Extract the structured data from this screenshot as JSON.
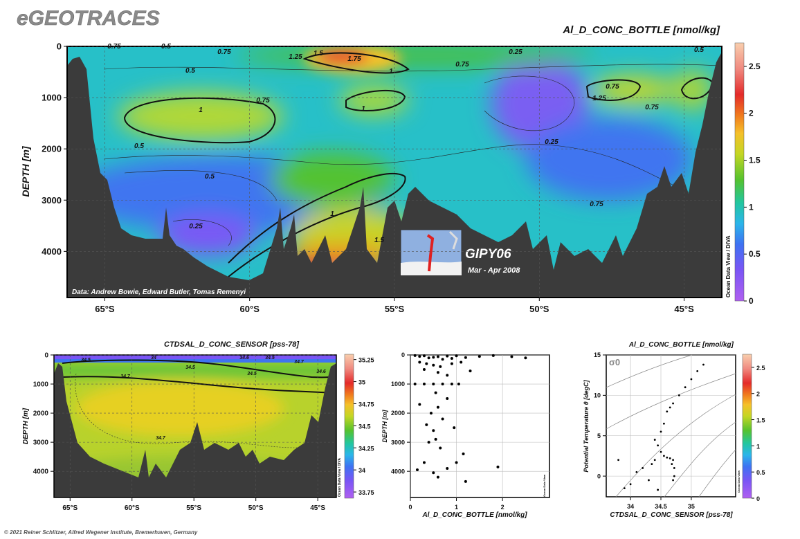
{
  "header": {
    "title": "eGEOTRACES",
    "credit": "© 2021 Reiner Schlitzer, Alfred Wegener Institute, Bremerhaven, Germany"
  },
  "chart_data": [
    {
      "type": "section",
      "title": "Al_D_CONC_BOTTLE [nmol/kg]",
      "ylabel": "DEPTH [m]",
      "note": "Data: Andrew Bowie, Edward Butler, Tomas Remenyi",
      "cruise": "GIPY06",
      "period": "Mar - Apr 2008",
      "side_label": "Ocean Data View / DIVA",
      "xlim": [
        -66.3,
        -43.7
      ],
      "xticks": [
        {
          "value": -65,
          "label": "65°S"
        },
        {
          "value": -60,
          "label": "60°S"
        },
        {
          "value": -55,
          "label": "55°S"
        },
        {
          "value": -50,
          "label": "50°S"
        },
        {
          "value": -45,
          "label": "45°S"
        }
      ],
      "ylim": [
        4900,
        0
      ],
      "yticks": [
        0,
        1000,
        2000,
        3000,
        4000
      ],
      "clim": [
        0,
        2.75
      ],
      "cticks": [
        0,
        0.5,
        1,
        1.5,
        2,
        2.5
      ],
      "contour_labels": [
        0.75,
        0.5,
        0.5,
        0.75,
        1.25,
        1.5,
        1.75,
        0.75,
        1,
        0.75,
        0.25,
        1,
        1,
        1.25,
        0.75,
        0.75,
        0.25,
        0.5,
        0.5,
        0.75,
        0.25,
        1,
        1.5,
        0.5
      ]
    },
    {
      "type": "section",
      "title": "CTDSAL_D_CONC_SENSOR [pss-78]",
      "ylabel": "DEPTH [m]",
      "side_label": "Ocean Data View / DIVA",
      "xlim": [
        -66.3,
        -43.5
      ],
      "xticks": [
        {
          "value": -65,
          "label": "65°S"
        },
        {
          "value": -60,
          "label": "60°S"
        },
        {
          "value": -55,
          "label": "55°S"
        },
        {
          "value": -50,
          "label": "50°S"
        },
        {
          "value": -45,
          "label": "45°S"
        }
      ],
      "ylim": [
        4900,
        0
      ],
      "yticks": [
        0,
        1000,
        2000,
        3000,
        4000
      ],
      "clim": [
        33.68,
        35.31
      ],
      "cticks": [
        33.75,
        34,
        34.25,
        34.5,
        34.75,
        35,
        35.25
      ],
      "contour_labels": [
        34.5,
        34,
        34.7,
        34.5,
        34.6,
        34.5,
        34.7,
        34.6,
        34.5,
        34.7
      ]
    },
    {
      "type": "scatter",
      "xlabel": "Al_D_CONC_BOTTLE [nmol/kg]",
      "ylabel": "DEPTH [m]",
      "side_label": "Ocean Data View",
      "xlim": [
        0,
        3.02
      ],
      "xticks": [
        0,
        1,
        2
      ],
      "ylim": [
        4900,
        0
      ],
      "yticks": [
        0,
        1000,
        2000,
        3000,
        4000
      ],
      "color": "#000000",
      "x": [
        0.1,
        0.2,
        0.3,
        0.4,
        0.5,
        0.6,
        0.7,
        0.8,
        0.9,
        1.0,
        1.2,
        1.5,
        1.8,
        2.2,
        2.5,
        0.2,
        0.35,
        0.5,
        0.65,
        0.9,
        1.1,
        0.3,
        0.6,
        0.8,
        1.3,
        0.1,
        0.3,
        0.5,
        0.7,
        0.9,
        1.05,
        0.55,
        0.8,
        0.2,
        0.6,
        0.45,
        0.7,
        0.35,
        0.5,
        0.95,
        0.55,
        0.4,
        0.65,
        1.15,
        0.3,
        0.8,
        1.0,
        0.15,
        0.5,
        0.6,
        1.2,
        1.9
      ],
      "values": [
        20,
        50,
        30,
        100,
        80,
        60,
        150,
        40,
        120,
        30,
        90,
        50,
        20,
        60,
        100,
        250,
        300,
        350,
        400,
        300,
        250,
        500,
        600,
        700,
        550,
        1000,
        1000,
        1000,
        1000,
        1000,
        1000,
        1300,
        1500,
        1700,
        1800,
        2000,
        2200,
        2400,
        2600,
        2500,
        2900,
        3000,
        3200,
        3400,
        3700,
        3900,
        3700,
        3950,
        4050,
        4200,
        4350,
        3850
      ]
    },
    {
      "type": "scatter",
      "title": "Al_D_CONC_BOTTLE [nmol/kg]",
      "xlabel": "CTDSAL_D_CONC_SENSOR [pss-78]",
      "ylabel": "Potential Temperature θ [degC]",
      "symbol": "σ0",
      "side_label": "Ocean Data View",
      "xlim": [
        33.6,
        35.73
      ],
      "xticks": [
        34,
        34.5,
        35
      ],
      "ylim": [
        -2.56,
        15
      ],
      "yticks": [
        0,
        5,
        10,
        15
      ],
      "clim": [
        0,
        2.75
      ],
      "cticks": [
        0,
        0.5,
        1,
        1.5,
        2,
        2.5
      ],
      "color": "#000000",
      "x": [
        34.7,
        34.68,
        34.72,
        34.65,
        34.6,
        34.55,
        34.5,
        34.45,
        34.4,
        34.5,
        34.55,
        34.6,
        34.65,
        34.7,
        34.8,
        34.9,
        35.0,
        35.1,
        35.2,
        33.9,
        34.0,
        34.1,
        34.2,
        33.8,
        34.3,
        34.35,
        34.4,
        34.45,
        34.72,
        34.7
      ],
      "values": [
        2.0,
        1.5,
        1.0,
        2.2,
        2.3,
        2.5,
        3.0,
        3.8,
        4.5,
        5.5,
        6.5,
        8.0,
        8.5,
        9.0,
        10.0,
        11.0,
        12.0,
        13.0,
        13.8,
        -1.5,
        -1.0,
        0.5,
        1.0,
        2.0,
        -0.5,
        1.5,
        2.0,
        -1.7,
        0.0,
        -0.5
      ]
    }
  ]
}
